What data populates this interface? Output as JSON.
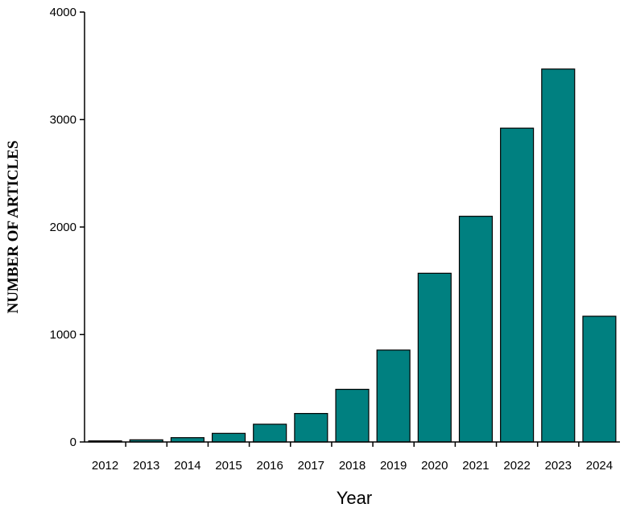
{
  "chart_data": {
    "type": "bar",
    "categories": [
      "2012",
      "2013",
      "2014",
      "2015",
      "2016",
      "2017",
      "2018",
      "2019",
      "2020",
      "2021",
      "2022",
      "2023",
      "2024"
    ],
    "values": [
      10,
      20,
      40,
      80,
      165,
      265,
      490,
      855,
      1570,
      2100,
      2920,
      3470,
      1170
    ],
    "xlabel": "Year",
    "ylabel": "NUMBER OF ARTICLES",
    "ylim": [
      0,
      4000
    ],
    "yticks": [
      "0",
      "1000",
      "2000",
      "3000",
      "4000"
    ],
    "grid": false,
    "bar_color": "#008080",
    "bar_edge_color": "#000000"
  }
}
